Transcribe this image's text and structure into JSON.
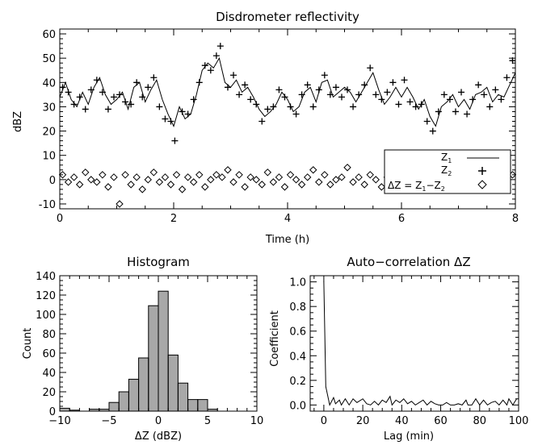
{
  "chart_data": [
    {
      "type": "line",
      "title": "Disdrometer reflectivity",
      "xlabel": "Time (h)",
      "ylabel": "dBZ",
      "xlim": [
        0,
        8
      ],
      "ylim": [
        -12,
        62
      ],
      "xticks": [
        "0",
        "2",
        "4",
        "6",
        "8"
      ],
      "yticks": [
        "-10",
        "0",
        "10",
        "20",
        "30",
        "40",
        "50",
        "60"
      ],
      "legend_placement": "bottom-right",
      "legend": [
        {
          "label": "Z",
          "sub": "1",
          "symbol": "line"
        },
        {
          "label": "Z",
          "sub": "2",
          "symbol": "plus"
        },
        {
          "label": "ΔZ = Z",
          "sub": "1",
          "label2": "−Z",
          "sub2": "2",
          "symbol": "diamond"
        }
      ],
      "series": [
        {
          "name": "Z1",
          "style": "line",
          "x": [
            0.0,
            0.1,
            0.2,
            0.3,
            0.4,
            0.5,
            0.6,
            0.7,
            0.8,
            0.9,
            1.0,
            1.1,
            1.2,
            1.3,
            1.4,
            1.5,
            1.6,
            1.7,
            1.8,
            1.9,
            2.0,
            2.1,
            2.2,
            2.3,
            2.4,
            2.5,
            2.6,
            2.7,
            2.8,
            2.9,
            3.0,
            3.1,
            3.2,
            3.3,
            3.4,
            3.5,
            3.6,
            3.7,
            3.8,
            3.9,
            4.0,
            4.1,
            4.2,
            4.3,
            4.4,
            4.5,
            4.6,
            4.7,
            4.8,
            4.9,
            5.0,
            5.1,
            5.2,
            5.3,
            5.4,
            5.5,
            5.6,
            5.7,
            5.8,
            5.9,
            6.0,
            6.1,
            6.2,
            6.3,
            6.4,
            6.5,
            6.6,
            6.7,
            6.8,
            6.9,
            7.0,
            7.1,
            7.2,
            7.3,
            7.4,
            7.5,
            7.6,
            7.7,
            7.8,
            7.9,
            8.0
          ],
          "values": [
            34,
            40,
            33,
            30,
            36,
            31,
            38,
            42,
            35,
            31,
            33,
            36,
            29,
            38,
            40,
            32,
            37,
            41,
            33,
            27,
            22,
            30,
            25,
            27,
            35,
            45,
            48,
            46,
            50,
            40,
            38,
            41,
            36,
            38,
            34,
            29,
            26,
            28,
            31,
            36,
            33,
            28,
            30,
            36,
            38,
            32,
            40,
            41,
            34,
            36,
            38,
            36,
            32,
            36,
            40,
            44,
            37,
            31,
            34,
            38,
            34,
            38,
            34,
            29,
            33,
            26,
            22,
            30,
            32,
            35,
            30,
            33,
            29,
            35,
            36,
            38,
            32,
            35,
            34,
            39,
            44
          ]
        },
        {
          "name": "Z2",
          "style": "plus",
          "x": [
            0.05,
            0.15,
            0.25,
            0.35,
            0.45,
            0.55,
            0.65,
            0.75,
            0.85,
            0.95,
            1.05,
            1.15,
            1.25,
            1.35,
            1.45,
            1.55,
            1.65,
            1.75,
            1.85,
            1.95,
            2.02,
            2.15,
            2.25,
            2.35,
            2.45,
            2.55,
            2.65,
            2.75,
            2.82,
            2.95,
            3.05,
            3.15,
            3.25,
            3.35,
            3.45,
            3.55,
            3.65,
            3.75,
            3.85,
            3.95,
            4.05,
            4.15,
            4.25,
            4.35,
            4.45,
            4.55,
            4.65,
            4.75,
            4.85,
            4.95,
            5.05,
            5.15,
            5.25,
            5.35,
            5.45,
            5.55,
            5.65,
            5.75,
            5.85,
            5.95,
            6.05,
            6.15,
            6.25,
            6.35,
            6.45,
            6.55,
            6.65,
            6.75,
            6.85,
            6.95,
            7.05,
            7.15,
            7.25,
            7.35,
            7.45,
            7.55,
            7.65,
            7.75,
            7.85,
            7.95
          ],
          "values": [
            38,
            36,
            31,
            34,
            29,
            37,
            41,
            36,
            29,
            34,
            35,
            32,
            31,
            40,
            34,
            38,
            42,
            30,
            25,
            24,
            16,
            28,
            27,
            33,
            40,
            47,
            45,
            51,
            55,
            38,
            43,
            35,
            39,
            33,
            31,
            24,
            29,
            30,
            37,
            34,
            30,
            27,
            35,
            39,
            30,
            37,
            43,
            35,
            38,
            34,
            37,
            30,
            35,
            39,
            46,
            35,
            33,
            36,
            40,
            31,
            41,
            32,
            30,
            31,
            24,
            20,
            28,
            35,
            33,
            28,
            36,
            27,
            33,
            39,
            35,
            30,
            37,
            33,
            42,
            49
          ]
        },
        {
          "name": "ΔZ",
          "style": "diamond",
          "x": [
            0.05,
            0.15,
            0.25,
            0.35,
            0.45,
            0.55,
            0.65,
            0.75,
            0.85,
            0.95,
            1.05,
            1.15,
            1.25,
            1.35,
            1.45,
            1.55,
            1.65,
            1.75,
            1.85,
            1.95,
            2.05,
            2.15,
            2.25,
            2.35,
            2.45,
            2.55,
            2.65,
            2.75,
            2.85,
            2.95,
            3.05,
            3.15,
            3.25,
            3.35,
            3.45,
            3.55,
            3.65,
            3.75,
            3.85,
            3.95,
            4.05,
            4.15,
            4.25,
            4.35,
            4.45,
            4.55,
            4.65,
            4.75,
            4.85,
            4.95,
            5.05,
            5.15,
            5.25,
            5.35,
            5.45,
            5.55,
            5.65,
            5.75,
            5.85,
            5.95,
            6.05,
            6.15,
            6.25,
            6.35,
            6.45,
            6.55,
            6.65,
            6.75,
            6.85,
            6.95,
            7.05,
            7.15,
            7.25,
            7.35,
            7.45,
            7.55,
            7.65,
            7.75,
            7.85,
            7.95
          ],
          "values": [
            2,
            -1,
            1,
            -2,
            3,
            0,
            -1,
            2,
            -3,
            1,
            -10,
            2,
            -2,
            1,
            -4,
            0,
            3,
            -1,
            1,
            -2,
            2,
            -4,
            1,
            -1,
            2,
            -3,
            0,
            2,
            1,
            4,
            -1,
            2,
            -3,
            1,
            0,
            -2,
            3,
            -1,
            1,
            -3,
            2,
            0,
            -2,
            1,
            4,
            -1,
            2,
            -2,
            0,
            1,
            5,
            -1,
            1,
            -2,
            2,
            0,
            -3,
            1,
            -1,
            2,
            0,
            -1,
            3,
            -2,
            1,
            -1,
            2,
            0,
            -1,
            1,
            -2,
            2,
            0,
            -1,
            1,
            0,
            -2,
            1,
            0,
            2
          ]
        }
      ]
    },
    {
      "type": "bar",
      "title": "Histogram",
      "xlabel": "ΔZ (dBZ)",
      "ylabel": "Count",
      "xlim": [
        -10,
        10
      ],
      "ylim": [
        0,
        140
      ],
      "xticks": [
        "−10",
        "−5",
        "0",
        "5",
        "10"
      ],
      "yticks": [
        "0",
        "20",
        "40",
        "60",
        "80",
        "100",
        "120",
        "140"
      ],
      "bin_width": 1,
      "bin_starts": [
        -10,
        -9,
        -8,
        -7,
        -6,
        -5,
        -4,
        -3,
        -2,
        -1,
        0,
        1,
        2,
        3,
        4,
        5
      ],
      "values": [
        3,
        1,
        0,
        2,
        2,
        9,
        20,
        33,
        55,
        109,
        124,
        58,
        29,
        12,
        12,
        2
      ],
      "fill": "#a8a8a8"
    },
    {
      "type": "line",
      "title": "Auto−correlation ΔZ",
      "xlabel": "Lag (min)",
      "ylabel": "Coefficient",
      "xlim": [
        -7,
        100
      ],
      "ylim": [
        -0.05,
        1.05
      ],
      "xticks": [
        "0",
        "20",
        "40",
        "60",
        "80",
        "100"
      ],
      "yticks": [
        "0.0",
        "0.2",
        "0.4",
        "0.6",
        "0.8",
        "1.0"
      ],
      "x": [
        0,
        1,
        3,
        5,
        6,
        8,
        9,
        11,
        13,
        15,
        17,
        18,
        20,
        22,
        24,
        26,
        28,
        30,
        32,
        34,
        35,
        37,
        39,
        41,
        43,
        45,
        47,
        49,
        51,
        53,
        55,
        57,
        59,
        61,
        63,
        65,
        67,
        69,
        71,
        73,
        74,
        76,
        78,
        80,
        82,
        84,
        86,
        88,
        90,
        92,
        94,
        95,
        97,
        99
      ],
      "values": [
        1.0,
        0.15,
        0.0,
        0.06,
        0.01,
        0.04,
        0.0,
        0.05,
        0.0,
        0.05,
        0.02,
        0.03,
        0.05,
        0.01,
        0.0,
        0.03,
        0.0,
        0.04,
        0.02,
        0.07,
        0.0,
        0.04,
        0.02,
        0.05,
        0.01,
        0.03,
        0.0,
        0.02,
        0.04,
        0.0,
        0.03,
        0.01,
        0.0,
        0.0,
        0.02,
        0.0,
        0.0,
        0.01,
        0.0,
        0.04,
        0.0,
        0.0,
        0.05,
        0.0,
        0.04,
        0.0,
        0.02,
        0.03,
        0.0,
        0.04,
        0.0,
        0.05,
        0.0,
        0.05
      ]
    }
  ]
}
